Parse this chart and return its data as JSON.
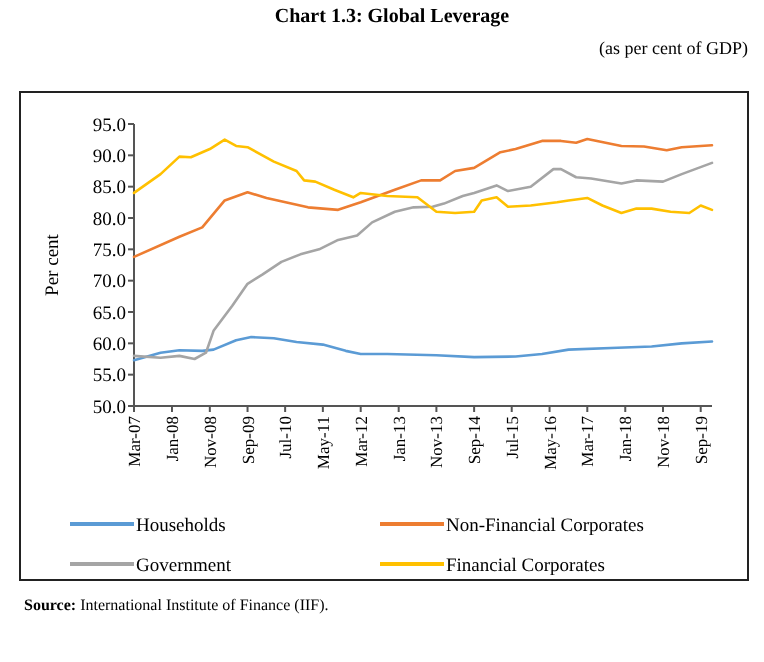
{
  "chart_data": {
    "type": "line",
    "title": "Chart 1.3: Global Leverage",
    "subtitle": "(as per cent of GDP)",
    "ylabel": "Per cent",
    "annotations": [
      "Source: International Institute of Finance (IIF)."
    ],
    "xlim": [
      "2007-03",
      "2019-12"
    ],
    "xticks": [
      {
        "value": "2007-03",
        "label": "Mar-07"
      },
      {
        "value": "2008-01",
        "label": "Jan-08"
      },
      {
        "value": "2008-11",
        "label": "Nov-08"
      },
      {
        "value": "2009-09",
        "label": "Sep-09"
      },
      {
        "value": "2010-07",
        "label": "Jul-10"
      },
      {
        "value": "2011-05",
        "label": "May-11"
      },
      {
        "value": "2012-03",
        "label": "Mar-12"
      },
      {
        "value": "2013-01",
        "label": "Jan-13"
      },
      {
        "value": "2013-11",
        "label": "Nov-13"
      },
      {
        "value": "2014-09",
        "label": "Sep-14"
      },
      {
        "value": "2015-07",
        "label": "Jul-15"
      },
      {
        "value": "2016-05",
        "label": "May-16"
      },
      {
        "value": "2017-03",
        "label": "Mar-17"
      },
      {
        "value": "2018-01",
        "label": "Jan-18"
      },
      {
        "value": "2018-11",
        "label": "Nov-18"
      },
      {
        "value": "2019-09",
        "label": "Sep-19"
      }
    ],
    "ylim": [
      50,
      95
    ],
    "yticks": [
      {
        "value": 50,
        "label": "50.0"
      },
      {
        "value": 55,
        "label": "55.0"
      },
      {
        "value": 60,
        "label": "60.0"
      },
      {
        "value": 65,
        "label": "65.0"
      },
      {
        "value": 70,
        "label": "70.0"
      },
      {
        "value": 75,
        "label": "75.0"
      },
      {
        "value": 80,
        "label": "80.0"
      },
      {
        "value": 85,
        "label": "85.0"
      },
      {
        "value": 90,
        "label": "90.0"
      },
      {
        "value": 95,
        "label": "95.0"
      }
    ],
    "grid": false,
    "legend": "bottom",
    "line_style": "solid",
    "marker": "none",
    "series": [
      {
        "name": "Households",
        "color": "#5b9bd5",
        "x": [
          "2007-03",
          "2007-10",
          "2008-03",
          "2008-09",
          "2008-12",
          "2009-06",
          "2009-10",
          "2010-04",
          "2010-10",
          "2011-05",
          "2011-11",
          "2012-03",
          "2012-10",
          "2013-11",
          "2014-09",
          "2015-08",
          "2016-03",
          "2016-10",
          "2017-11",
          "2018-08",
          "2019-04",
          "2019-12"
        ],
        "values": [
          57.3,
          58.5,
          58.9,
          58.8,
          59,
          60.5,
          61,
          60.8,
          60.2,
          59.8,
          58.8,
          58.3,
          58.3,
          58.1,
          57.8,
          57.9,
          58.3,
          59,
          59.3,
          59.5,
          60,
          60.3
        ]
      },
      {
        "name": "Non-Financial Corporates",
        "color": "#ed7d31",
        "x": [
          "2007-03",
          "2008-03",
          "2008-09",
          "2009-03",
          "2009-09",
          "2010-02",
          "2011-01",
          "2011-09",
          "2012-03",
          "2012-12",
          "2013-07",
          "2013-12",
          "2014-04",
          "2014-09",
          "2015-04",
          "2015-08",
          "2016-03",
          "2016-08",
          "2016-12",
          "2017-03",
          "2017-12",
          "2018-06",
          "2018-12",
          "2019-04",
          "2019-12"
        ],
        "values": [
          73.8,
          77,
          78.5,
          82.8,
          84.1,
          83.2,
          81.7,
          81.3,
          82.5,
          84.5,
          86,
          86,
          87.5,
          88,
          90.5,
          91,
          92.3,
          92.3,
          92,
          92.6,
          91.5,
          91.4,
          90.8,
          91.3,
          91.6
        ]
      },
      {
        "name": "Government",
        "color": "#a5a5a5",
        "x": [
          "2007-03",
          "2007-10",
          "2008-03",
          "2008-07",
          "2008-10",
          "2008-12",
          "2009-05",
          "2009-09",
          "2010-01",
          "2010-06",
          "2010-11",
          "2011-04",
          "2011-09",
          "2012-02",
          "2012-06",
          "2012-12",
          "2013-05",
          "2013-10",
          "2014-01",
          "2014-06",
          "2014-09",
          "2015-03",
          "2015-06",
          "2015-12",
          "2016-06",
          "2016-08",
          "2016-12",
          "2017-04",
          "2017-12",
          "2018-04",
          "2018-11",
          "2019-04",
          "2019-12"
        ],
        "values": [
          58,
          57.7,
          58,
          57.5,
          58.5,
          62,
          66,
          69.5,
          71,
          73,
          74.2,
          75,
          76.5,
          77.2,
          79.3,
          81,
          81.7,
          81.8,
          82.3,
          83.5,
          84,
          85.2,
          84.3,
          85,
          87.8,
          87.8,
          86.5,
          86.3,
          85.5,
          86,
          85.8,
          87,
          88.8
        ]
      },
      {
        "name": "Financial Corporates",
        "color": "#ffc000",
        "x": [
          "2007-03",
          "2007-10",
          "2008-03",
          "2008-06",
          "2008-11",
          "2009-03",
          "2009-06",
          "2009-09",
          "2010-04",
          "2010-10",
          "2010-12",
          "2011-03",
          "2011-08",
          "2012-01",
          "2012-03",
          "2012-10",
          "2013-06",
          "2013-11",
          "2014-04",
          "2014-09",
          "2014-11",
          "2015-03",
          "2015-06",
          "2015-12",
          "2016-07",
          "2016-10",
          "2017-03",
          "2017-07",
          "2017-12",
          "2018-04",
          "2018-08",
          "2019-01",
          "2019-06",
          "2019-09",
          "2019-12"
        ],
        "values": [
          84,
          87,
          89.8,
          89.7,
          91,
          92.5,
          91.5,
          91.3,
          89,
          87.5,
          86,
          85.8,
          84.5,
          83.3,
          84,
          83.5,
          83.3,
          81,
          80.8,
          81,
          82.8,
          83.3,
          81.8,
          82,
          82.5,
          82.8,
          83.2,
          82,
          80.8,
          81.5,
          81.5,
          81,
          80.8,
          82,
          81.3
        ]
      }
    ]
  }
}
